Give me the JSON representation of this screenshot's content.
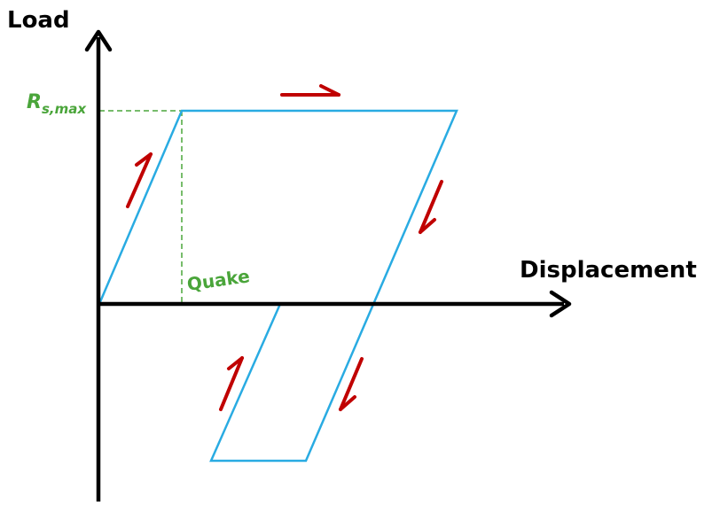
{
  "labels": {
    "y_axis": "Load",
    "x_axis": "Displacement",
    "rs_max_main": "R",
    "rs_max_sub": "s,max",
    "quake": "Quake"
  },
  "colors": {
    "axis": "#000000",
    "loop": "#29abe2",
    "arrow": "#c00000",
    "guide": "#4aa53a"
  }
}
